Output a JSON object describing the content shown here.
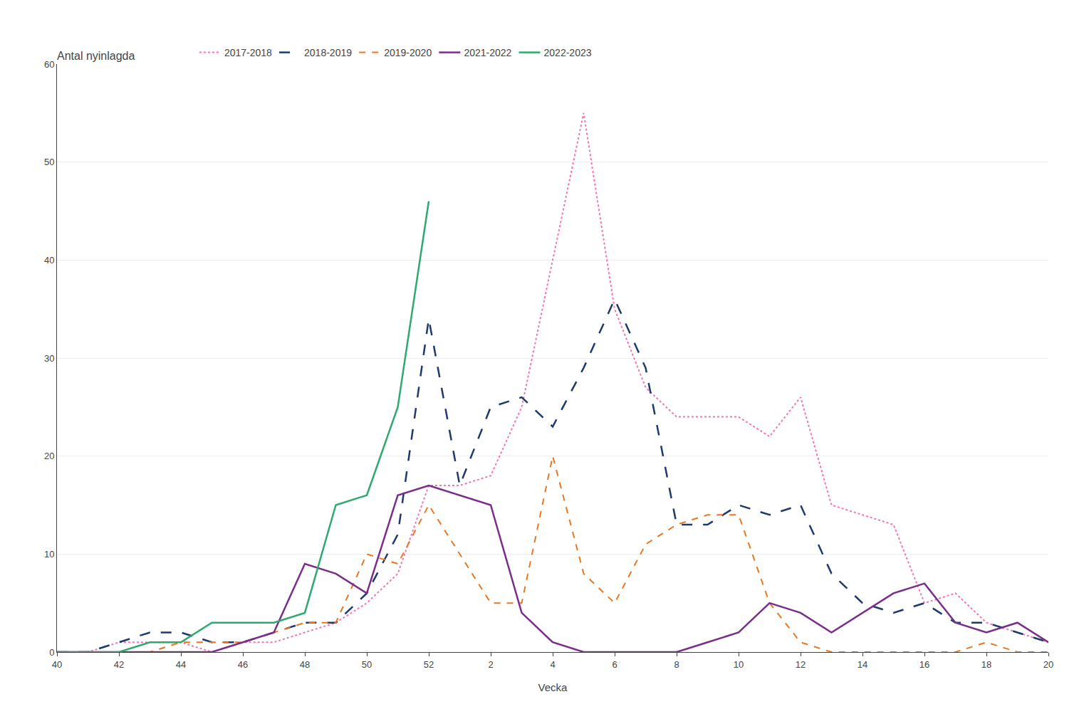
{
  "chart_data": {
    "type": "line",
    "title": "Antal nyinlagda",
    "xlabel": "Vecka",
    "categories": [
      "40",
      null,
      "42",
      null,
      "44",
      null,
      "46",
      null,
      "48",
      null,
      "50",
      null,
      "52",
      null,
      "2",
      null,
      "4",
      null,
      "6",
      null,
      "8",
      null,
      "10",
      null,
      "12",
      null,
      "14",
      null,
      "16",
      null,
      "18",
      null,
      "20"
    ],
    "series": [
      {
        "name": "2017-2018",
        "color": "#f472b6",
        "line_style": "dotted",
        "values": [
          0,
          0,
          1,
          1,
          1,
          0,
          1,
          1,
          2,
          3,
          5,
          8,
          17,
          17,
          18,
          25,
          40,
          55,
          35,
          27,
          24,
          24,
          24,
          22,
          26,
          15,
          14,
          13,
          5,
          6,
          3,
          2,
          1
        ]
      },
      {
        "name": "2018-2019",
        "color": "#1e3a6e",
        "line_style": "long_dashed",
        "values": [
          0,
          0,
          1,
          2,
          2,
          1,
          1,
          2,
          3,
          3,
          6,
          12,
          34,
          17,
          25,
          26,
          23,
          29,
          36,
          29,
          13,
          13,
          15,
          14,
          15,
          8,
          5,
          4,
          5,
          3,
          3,
          2,
          1
        ]
      },
      {
        "name": "2019-2020",
        "color": "#e87722",
        "line_style": "dashed",
        "values": [
          0,
          0,
          0,
          0,
          1,
          1,
          1,
          2,
          3,
          3,
          10,
          9,
          15,
          10,
          5,
          5,
          20,
          8,
          5,
          11,
          13,
          14,
          14,
          5,
          1,
          0,
          0,
          0,
          0,
          0,
          1,
          0,
          0
        ]
      },
      {
        "name": "2021-2022",
        "color": "#7b2d8b",
        "line_style": "solid",
        "values": [
          0,
          0,
          0,
          0,
          0,
          0,
          1,
          2,
          9,
          8,
          6,
          16,
          17,
          16,
          15,
          4,
          1,
          0,
          0,
          0,
          0,
          1,
          2,
          5,
          4,
          2,
          4,
          6,
          7,
          3,
          2,
          3,
          1
        ]
      },
      {
        "name": "2022-2023",
        "color": "#2eaa6e",
        "line_style": "solid",
        "values": [
          0,
          0,
          0,
          1,
          1,
          3,
          3,
          3,
          4,
          15,
          16,
          25,
          46,
          null,
          null,
          null,
          null,
          null,
          null,
          null,
          null,
          null,
          null,
          null,
          null,
          null,
          null,
          null,
          null,
          null,
          null,
          null,
          null
        ]
      }
    ],
    "ylim": [
      0,
      60
    ],
    "yticks": [
      0,
      10,
      20,
      30,
      40,
      50,
      60
    ],
    "grid": true,
    "legend": "top"
  }
}
